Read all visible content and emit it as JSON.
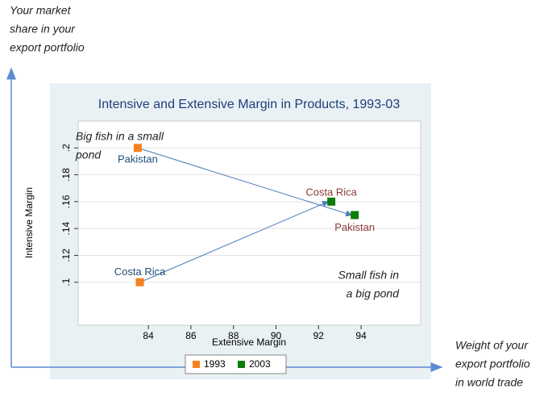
{
  "chart_data": {
    "type": "scatter",
    "title": "Intensive and Extensive Margin in Products, 1993-03",
    "x_label": "Extensive Margin",
    "y_label": "Intensive Margin",
    "series": [
      {
        "name": "1993",
        "color": "#f7811e",
        "x": [
          83.5,
          83.6
        ],
        "values": [
          0.2,
          0.1
        ],
        "labels": [
          "Pakistan",
          "Costa Rica"
        ],
        "label_color": "#1f4e79"
      },
      {
        "name": "2003",
        "color": "#0b7d0b",
        "x": [
          92.6,
          93.7
        ],
        "values": [
          0.16,
          0.15
        ],
        "labels": [
          "Costa Rica",
          "Pakistan"
        ],
        "label_color": "#8b3a3a"
      }
    ],
    "xlim": [
      80.7,
      96.8
    ],
    "xticks": [
      84,
      86,
      88,
      90,
      92,
      94
    ],
    "ylim": [
      0.068,
      0.22
    ],
    "yticks": [
      {
        "value": 0.1,
        "label": ".1"
      },
      {
        "value": 0.12,
        "label": ".12"
      },
      {
        "value": 0.14,
        "label": ".14"
      },
      {
        "value": 0.16,
        "label": ".16"
      },
      {
        "value": 0.18,
        "label": ".18"
      },
      {
        "value": 0.2,
        "label": ".2"
      }
    ],
    "annotations": {
      "top_left": [
        "Big fish in a small",
        "pond"
      ],
      "bottom_right": [
        "Small fish in",
        "a big pond"
      ],
      "y_arrow": [
        "Your market",
        "share in your",
        "export portfolio"
      ],
      "x_arrow": [
        "Weight of your",
        "export portfolio",
        "in world trade"
      ]
    }
  }
}
